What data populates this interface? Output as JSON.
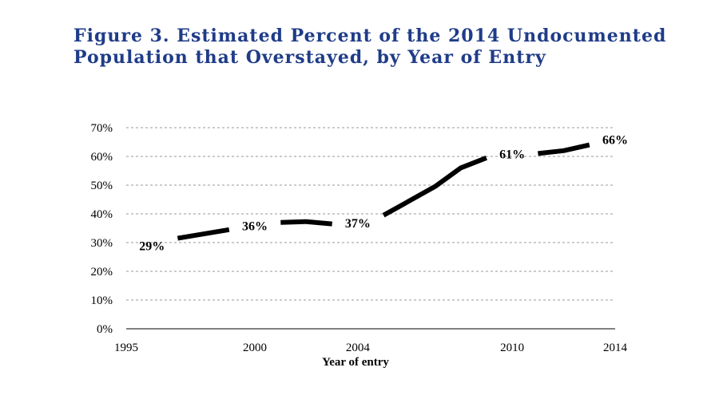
{
  "figure": {
    "title_line1": "Figure 3. Estimated Percent of the 2014 Undocumented",
    "title_line2": "Population that Overstayed, by Year of Entry",
    "title_color": "#1f3c88"
  },
  "chart_data": {
    "type": "line",
    "title": "Figure 3. Estimated Percent of the 2014 Undocumented Population that Overstayed, by Year of Entry",
    "xlabel": "Year of entry",
    "ylabel": "",
    "x_ticks": [
      1995,
      2000,
      2004,
      2010,
      2014
    ],
    "y_ticks": [
      0,
      10,
      20,
      30,
      40,
      50,
      60,
      70
    ],
    "y_tick_labels": [
      "0%",
      "10%",
      "20%",
      "30%",
      "40%",
      "50%",
      "60%",
      "70%"
    ],
    "xlim": [
      1995,
      2014
    ],
    "ylim": [
      0,
      70
    ],
    "grid": "horizontal dashed",
    "series": [
      {
        "x": [
          1996,
          1997,
          1998,
          1999,
          2000,
          2001,
          2002,
          2003,
          2004,
          2005,
          2006,
          2007,
          2008,
          2009,
          2010,
          2011,
          2012,
          2013,
          2014
        ],
        "y": [
          29,
          31.5,
          33,
          34.5,
          36,
          37,
          37.3,
          36.5,
          37,
          39.5,
          44.5,
          49.5,
          56,
          59.5,
          61,
          61,
          62,
          64,
          66
        ],
        "color": "#000000"
      }
    ],
    "annotations": [
      {
        "x": 1996,
        "y": 29,
        "text": "29%"
      },
      {
        "x": 2000,
        "y": 36,
        "text": "36%"
      },
      {
        "x": 2004,
        "y": 37,
        "text": "37%"
      },
      {
        "x": 2010,
        "y": 61,
        "text": "61%"
      },
      {
        "x": 2014,
        "y": 66,
        "text": "66%"
      }
    ]
  }
}
